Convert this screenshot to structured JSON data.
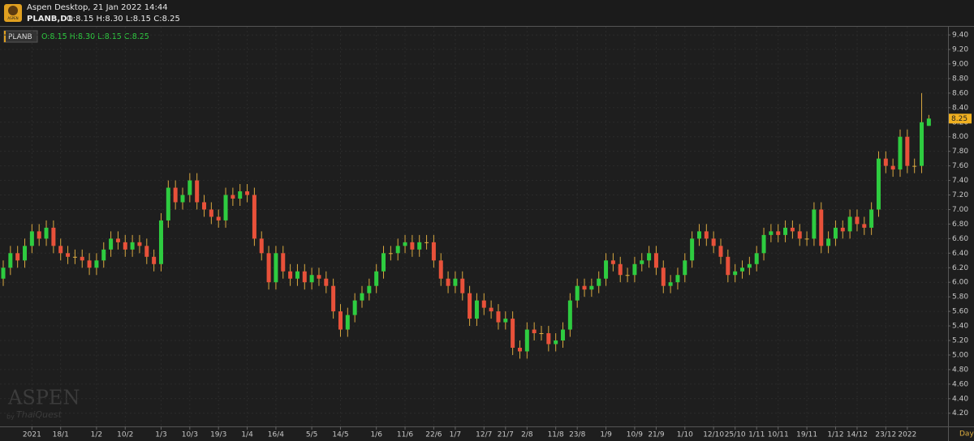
{
  "header": {
    "app_title": "Aspen Desktop, 21 Jan 2022 14:44",
    "symbol": "PLANB,D1",
    "ohlc": "O:8.15 H:8.30 L:8.15 C:8.25",
    "logo": "ASPEN"
  },
  "watermark": {
    "brand": "ASPEN",
    "by": "by",
    "company": "ThaiQuest"
  },
  "chart_data": {
    "type": "candlestick",
    "legend_symbol": "PLANB",
    "legend_ohlc": "O:8.15 H:8.30 L:8.15 C:8.25",
    "period": "Day",
    "up_color": "#2ecc40",
    "down_color": "#e8513a",
    "flat_color": "#e0b040",
    "wick_color": "#d8a840",
    "grid": true,
    "last_price": {
      "value": 8.25,
      "label": "8.25"
    },
    "ylim": [
      4.03,
      9.49
    ],
    "yticks": [
      {
        "value": 4.2,
        "label": "4.20"
      },
      {
        "value": 4.4,
        "label": "4.40"
      },
      {
        "value": 4.6,
        "label": "4.60"
      },
      {
        "value": 4.8,
        "label": "4.80"
      },
      {
        "value": 5,
        "label": "5.00"
      },
      {
        "value": 5.2,
        "label": "5.20"
      },
      {
        "value": 5.4,
        "label": "5.40"
      },
      {
        "value": 5.6,
        "label": "5.60"
      },
      {
        "value": 5.8,
        "label": "5.80"
      },
      {
        "value": 6,
        "label": "6.00"
      },
      {
        "value": 6.2,
        "label": "6.20"
      },
      {
        "value": 6.4,
        "label": "6.40"
      },
      {
        "value": 6.6,
        "label": "6.60"
      },
      {
        "value": 6.8,
        "label": "6.80"
      },
      {
        "value": 7,
        "label": "7.00"
      },
      {
        "value": 7.2,
        "label": "7.20"
      },
      {
        "value": 7.4,
        "label": "7.40"
      },
      {
        "value": 7.6,
        "label": "7.60"
      },
      {
        "value": 7.8,
        "label": "7.80"
      },
      {
        "value": 8,
        "label": "8.00"
      },
      {
        "value": 8.2,
        "label": "8.20"
      },
      {
        "value": 8.4,
        "label": "8.40"
      },
      {
        "value": 8.6,
        "label": "8.60"
      },
      {
        "value": 8.8,
        "label": "8.80"
      },
      {
        "value": 9,
        "label": "9.00"
      },
      {
        "value": 9.2,
        "label": "9.20"
      },
      {
        "value": 9.4,
        "label": "9.40"
      }
    ],
    "xticks": [
      {
        "value": 4,
        "label": "2021"
      },
      {
        "value": 8,
        "label": "18/1"
      },
      {
        "value": 13,
        "label": "1/2"
      },
      {
        "value": 17,
        "label": "10/2"
      },
      {
        "value": 22,
        "label": "1/3"
      },
      {
        "value": 26,
        "label": "10/3"
      },
      {
        "value": 30,
        "label": "19/3"
      },
      {
        "value": 34,
        "label": "1/4"
      },
      {
        "value": 38,
        "label": "16/4"
      },
      {
        "value": 43,
        "label": "5/5"
      },
      {
        "value": 47,
        "label": "14/5"
      },
      {
        "value": 52,
        "label": "1/6"
      },
      {
        "value": 56,
        "label": "11/6"
      },
      {
        "value": 60,
        "label": "22/6"
      },
      {
        "value": 63,
        "label": "1/7"
      },
      {
        "value": 67,
        "label": "12/7"
      },
      {
        "value": 70,
        "label": "21/7"
      },
      {
        "value": 73,
        "label": "2/8"
      },
      {
        "value": 77,
        "label": "11/8"
      },
      {
        "value": 80,
        "label": "23/8"
      },
      {
        "value": 84,
        "label": "1/9"
      },
      {
        "value": 88,
        "label": "10/9"
      },
      {
        "value": 91,
        "label": "21/9"
      },
      {
        "value": 95,
        "label": "1/10"
      },
      {
        "value": 99,
        "label": "12/10"
      },
      {
        "value": 102,
        "label": "25/10"
      },
      {
        "value": 105,
        "label": "1/11"
      },
      {
        "value": 108,
        "label": "10/11"
      },
      {
        "value": 112,
        "label": "19/11"
      },
      {
        "value": 116,
        "label": "1/12"
      },
      {
        "value": 119,
        "label": "14/12"
      },
      {
        "value": 123,
        "label": "23/12"
      },
      {
        "value": 126,
        "label": "2022"
      }
    ],
    "open": [
      6.05,
      6.2,
      6.4,
      6.3,
      6.5,
      6.7,
      6.6,
      6.75,
      6.5,
      6.4,
      6.35,
      6.35,
      6.3,
      6.2,
      6.3,
      6.45,
      6.6,
      6.55,
      6.45,
      6.55,
      6.5,
      6.35,
      6.25,
      6.85,
      7.3,
      7.1,
      7.2,
      7.4,
      7.1,
      7.0,
      6.9,
      6.85,
      7.2,
      7.15,
      7.25,
      7.2,
      6.6,
      6.4,
      6.0,
      6.4,
      6.15,
      6.05,
      6.15,
      6.0,
      6.1,
      6.05,
      5.95,
      5.6,
      5.35,
      5.55,
      5.75,
      5.85,
      5.95,
      6.15,
      6.4,
      6.4,
      6.5,
      6.55,
      6.45,
      6.55,
      6.55,
      6.3,
      6.05,
      5.95,
      6.05,
      5.85,
      5.5,
      5.75,
      5.65,
      5.6,
      5.45,
      5.5,
      5.1,
      5.05,
      5.35,
      5.3,
      5.3,
      5.15,
      5.2,
      5.35,
      5.75,
      5.95,
      5.9,
      5.95,
      6.05,
      6.3,
      6.25,
      6.1,
      6.1,
      6.25,
      6.3,
      6.4,
      6.2,
      5.95,
      6.0,
      6.1,
      6.3,
      6.6,
      6.7,
      6.6,
      6.5,
      6.35,
      6.1,
      6.15,
      6.2,
      6.25,
      6.4,
      6.65,
      6.7,
      6.65,
      6.75,
      6.7,
      6.6,
      6.6,
      7.0,
      6.5,
      6.6,
      6.75,
      6.7,
      6.9,
      6.8,
      6.75,
      7.0,
      7.7,
      7.6,
      7.55,
      8.0,
      7.6,
      7.6,
      8.15
    ],
    "high": [
      6.3,
      6.5,
      6.5,
      6.6,
      6.8,
      6.8,
      6.85,
      6.85,
      6.6,
      6.5,
      6.45,
      6.45,
      6.4,
      6.4,
      6.55,
      6.7,
      6.7,
      6.65,
      6.65,
      6.65,
      6.6,
      6.45,
      6.95,
      7.4,
      7.4,
      7.3,
      7.5,
      7.5,
      7.2,
      7.1,
      7.0,
      7.3,
      7.3,
      7.35,
      7.35,
      7.3,
      6.7,
      6.5,
      6.5,
      6.5,
      6.25,
      6.25,
      6.25,
      6.2,
      6.2,
      6.15,
      6.05,
      5.7,
      5.65,
      5.85,
      5.95,
      6.05,
      6.25,
      6.5,
      6.5,
      6.6,
      6.65,
      6.65,
      6.65,
      6.65,
      6.65,
      6.4,
      6.15,
      6.15,
      6.15,
      5.95,
      5.85,
      5.85,
      5.75,
      5.7,
      5.6,
      5.6,
      5.2,
      5.45,
      5.45,
      5.4,
      5.4,
      5.3,
      5.45,
      5.85,
      6.05,
      6.05,
      6.05,
      6.15,
      6.4,
      6.4,
      6.35,
      6.2,
      6.35,
      6.4,
      6.5,
      6.5,
      6.3,
      6.1,
      6.2,
      6.4,
      6.7,
      6.8,
      6.8,
      6.7,
      6.6,
      6.45,
      6.25,
      6.3,
      6.35,
      6.5,
      6.75,
      6.8,
      6.8,
      6.85,
      6.85,
      6.8,
      6.7,
      7.1,
      7.1,
      6.7,
      6.85,
      6.85,
      7.0,
      7.0,
      6.9,
      7.1,
      7.8,
      7.8,
      7.7,
      8.1,
      8.1,
      7.7,
      8.6,
      8.3
    ],
    "low": [
      5.95,
      6.1,
      6.2,
      6.2,
      6.4,
      6.5,
      6.5,
      6.4,
      6.3,
      6.25,
      6.25,
      6.2,
      6.1,
      6.1,
      6.2,
      6.35,
      6.45,
      6.35,
      6.35,
      6.4,
      6.25,
      6.15,
      6.15,
      6.75,
      7.0,
      7.0,
      7.1,
      7.0,
      6.9,
      6.8,
      6.75,
      6.75,
      7.05,
      7.05,
      7.1,
      6.5,
      6.3,
      5.9,
      5.9,
      6.05,
      5.95,
      5.95,
      5.9,
      5.9,
      5.95,
      5.85,
      5.5,
      5.25,
      5.25,
      5.45,
      5.65,
      5.75,
      5.85,
      6.05,
      6.3,
      6.3,
      6.4,
      6.35,
      6.35,
      6.45,
      6.2,
      5.95,
      5.85,
      5.85,
      5.75,
      5.4,
      5.4,
      5.55,
      5.5,
      5.35,
      5.35,
      5.0,
      4.95,
      4.95,
      5.2,
      5.2,
      5.05,
      5.05,
      5.1,
      5.25,
      5.65,
      5.8,
      5.8,
      5.85,
      5.95,
      6.15,
      6.0,
      6.0,
      6.0,
      6.15,
      6.2,
      6.1,
      5.85,
      5.85,
      5.9,
      6.0,
      6.2,
      6.5,
      6.5,
      6.4,
      6.25,
      6.0,
      6.0,
      6.05,
      6.1,
      6.15,
      6.3,
      6.55,
      6.55,
      6.55,
      6.6,
      6.5,
      6.5,
      6.5,
      6.4,
      6.4,
      6.5,
      6.6,
      6.6,
      6.7,
      6.65,
      6.65,
      6.9,
      7.5,
      7.45,
      7.45,
      7.5,
      7.5,
      7.5,
      8.15
    ],
    "close": [
      6.2,
      6.4,
      6.3,
      6.5,
      6.7,
      6.6,
      6.75,
      6.5,
      6.4,
      6.35,
      6.35,
      6.3,
      6.2,
      6.3,
      6.45,
      6.6,
      6.55,
      6.45,
      6.55,
      6.5,
      6.35,
      6.25,
      6.85,
      7.3,
      7.1,
      7.2,
      7.4,
      7.1,
      7.0,
      6.9,
      6.85,
      7.2,
      7.15,
      7.25,
      7.2,
      6.6,
      6.4,
      6.0,
      6.4,
      6.15,
      6.05,
      6.15,
      6.0,
      6.1,
      6.05,
      5.95,
      5.6,
      5.35,
      5.55,
      5.75,
      5.85,
      5.95,
      6.15,
      6.4,
      6.4,
      6.5,
      6.55,
      6.45,
      6.55,
      6.55,
      6.3,
      6.05,
      5.95,
      6.05,
      5.85,
      5.5,
      5.75,
      5.65,
      5.6,
      5.45,
      5.5,
      5.1,
      5.05,
      5.35,
      5.3,
      5.3,
      5.15,
      5.2,
      5.35,
      5.75,
      5.95,
      5.9,
      5.95,
      6.05,
      6.3,
      6.25,
      6.1,
      6.1,
      6.25,
      6.3,
      6.4,
      6.2,
      5.95,
      6.0,
      6.1,
      6.3,
      6.6,
      6.7,
      6.6,
      6.5,
      6.35,
      6.1,
      6.15,
      6.2,
      6.25,
      6.4,
      6.65,
      6.7,
      6.65,
      6.75,
      6.7,
      6.6,
      6.6,
      7.0,
      6.5,
      6.6,
      6.75,
      6.7,
      6.9,
      6.8,
      6.75,
      7.0,
      7.7,
      7.6,
      7.55,
      8.0,
      7.6,
      7.6,
      8.2,
      8.25
    ]
  }
}
